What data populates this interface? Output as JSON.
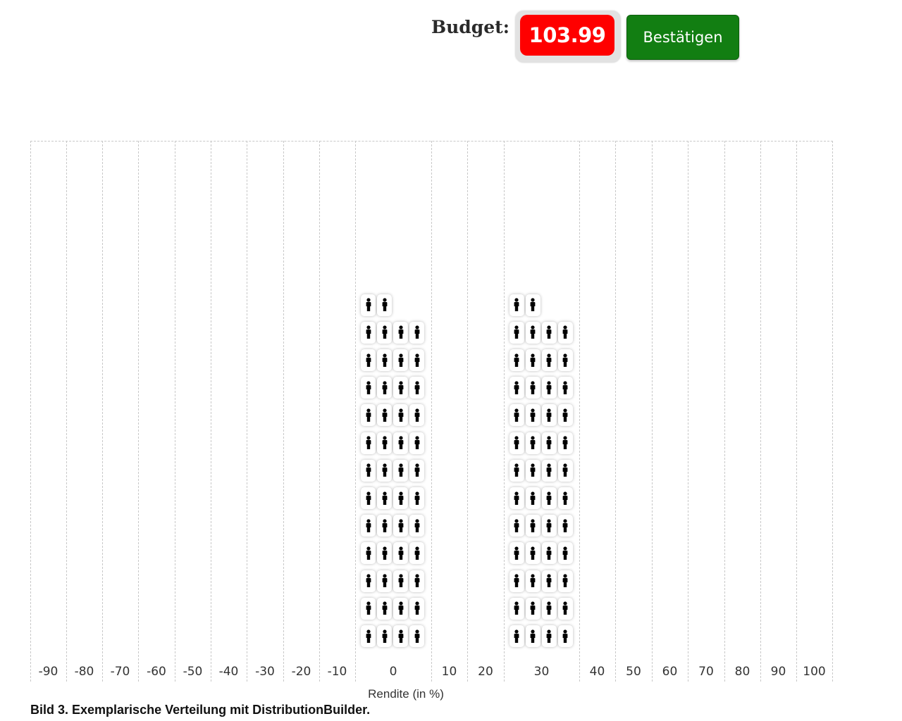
{
  "header": {
    "budget_label": "Budget:",
    "budget_value": "103.99",
    "confirm_label": "Bestätigen"
  },
  "colors": {
    "budget_bg": "#ff0000",
    "confirm_bg": "#127e12"
  },
  "chart_data": {
    "type": "bar",
    "categories": [
      "-90",
      "-80",
      "-70",
      "-60",
      "-50",
      "-40",
      "-30",
      "-20",
      "-10",
      "0",
      "10",
      "20",
      "30",
      "40",
      "50",
      "60",
      "70",
      "80",
      "90",
      "100"
    ],
    "values": [
      0,
      0,
      0,
      0,
      0,
      0,
      0,
      0,
      0,
      50,
      0,
      0,
      50,
      0,
      0,
      0,
      0,
      0,
      0,
      0
    ],
    "marker_icon": "person-icon",
    "xlabel": "Rendite (in %)",
    "ylabel": "",
    "grid": true
  },
  "caption": "Bild 3. Exemplarische Verteilung mit DistributionBuilder."
}
